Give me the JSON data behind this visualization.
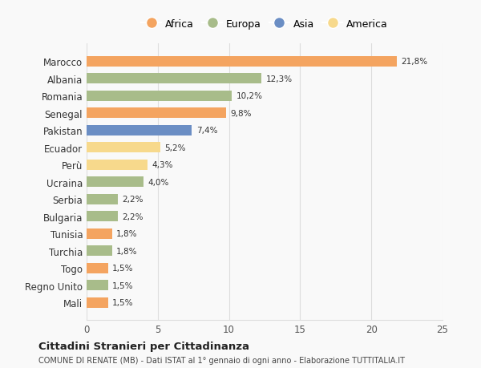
{
  "categories": [
    "Marocco",
    "Albania",
    "Romania",
    "Senegal",
    "Pakistan",
    "Ecuador",
    "Perù",
    "Ucraina",
    "Serbia",
    "Bulgaria",
    "Tunisia",
    "Turchia",
    "Togo",
    "Regno Unito",
    "Mali"
  ],
  "values": [
    21.8,
    12.3,
    10.2,
    9.8,
    7.4,
    5.2,
    4.3,
    4.0,
    2.2,
    2.2,
    1.8,
    1.8,
    1.5,
    1.5,
    1.5
  ],
  "colors": [
    "#F4A460",
    "#A8BC8A",
    "#A8BC8A",
    "#F4A460",
    "#6B8EC4",
    "#F7D98C",
    "#F7D98C",
    "#A8BC8A",
    "#A8BC8A",
    "#A8BC8A",
    "#F4A460",
    "#A8BC8A",
    "#F4A460",
    "#A8BC8A",
    "#F4A460"
  ],
  "labels": [
    "21,8%",
    "12,3%",
    "10,2%",
    "9,8%",
    "7,4%",
    "5,2%",
    "4,3%",
    "4,0%",
    "2,2%",
    "2,2%",
    "1,8%",
    "1,8%",
    "1,5%",
    "1,5%",
    "1,5%"
  ],
  "legend": [
    {
      "label": "Africa",
      "color": "#F4A460"
    },
    {
      "label": "Europa",
      "color": "#A8BC8A"
    },
    {
      "label": "Asia",
      "color": "#6B8EC4"
    },
    {
      "label": "America",
      "color": "#F7D98C"
    }
  ],
  "xlim": [
    0,
    25
  ],
  "xticks": [
    0,
    5,
    10,
    15,
    20,
    25
  ],
  "title": "Cittadini Stranieri per Cittadinanza",
  "subtitle": "COMUNE DI RENATE (MB) - Dati ISTAT al 1° gennaio di ogni anno - Elaborazione TUTTITALIA.IT",
  "background_color": "#f9f9f9",
  "grid_color": "#dddddd"
}
